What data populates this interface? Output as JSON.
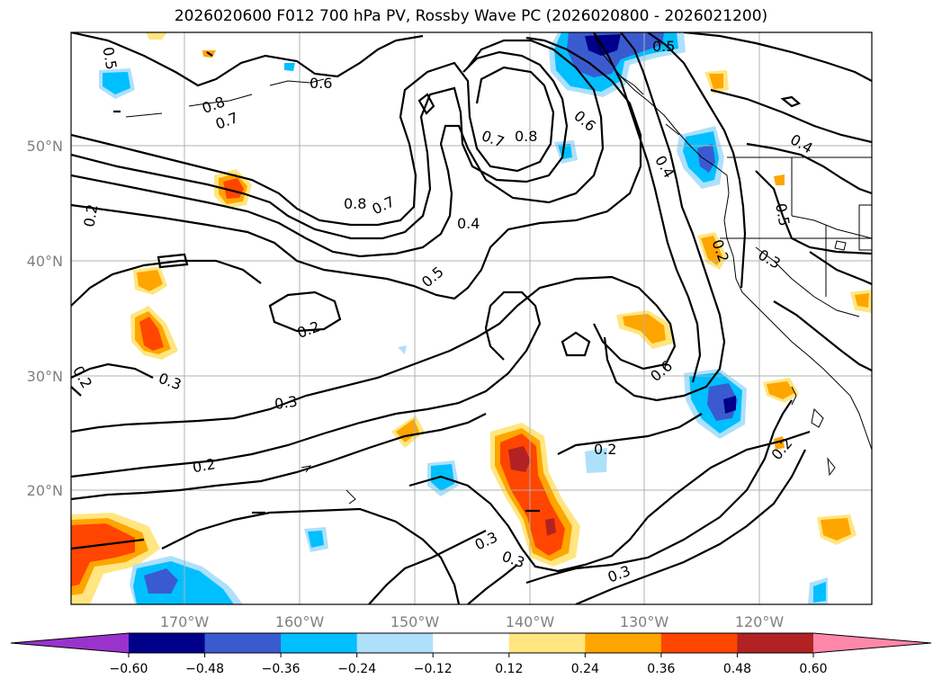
{
  "title": "2026020600 F012 700 hPa PV, Rossby Wave PC (2026020800 - 2026021200)",
  "lat_labels": [
    "50°N",
    "40°N",
    "30°N",
    "20°N"
  ],
  "lon_labels": [
    "170°W",
    "160°W",
    "150°W",
    "140°W",
    "130°W",
    "120°W"
  ],
  "contour_labels": [
    "0.5",
    "0.6",
    "0.8",
    "0.7",
    "0.5",
    "0.7",
    "0.8",
    "0.6",
    "0.4",
    "0.4",
    "0.5",
    "0.2",
    "0.3",
    "0.8",
    "0.7",
    "0.4",
    "0.5",
    "0.2",
    "0.6",
    "0.2",
    "0.3",
    "0.3",
    "0.2",
    "0.2",
    "0.2",
    "0.3",
    "0.3",
    "0.3",
    "0.2"
  ],
  "colorbar": {
    "ticks": [
      "−0.60",
      "−0.48",
      "−0.36",
      "−0.24",
      "−0.12",
      "0.12",
      "0.24",
      "0.36",
      "0.48",
      "0.60"
    ],
    "colors": [
      "#9933cc",
      "#00008b",
      "#3a5bd0",
      "#00bfff",
      "#aee0fa",
      "#ffffff",
      "#ffe680",
      "#ffa500",
      "#ff4500",
      "#b22222",
      "#ff88aa"
    ]
  }
}
